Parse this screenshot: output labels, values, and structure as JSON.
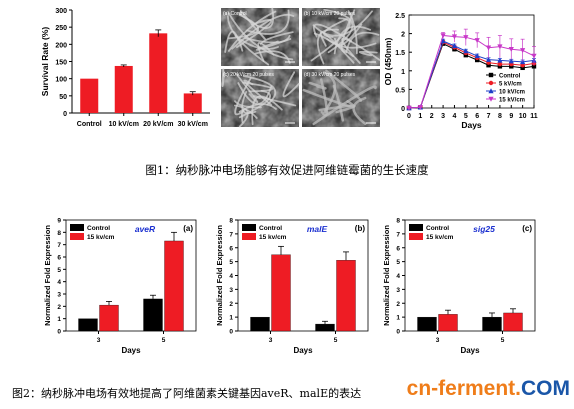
{
  "figure1_caption": "图1：纳秒脉冲电场能够有效促进阿维链霉菌的生长速度",
  "figure2_caption": "图2：纳秒脉冲电场有效地提高了阿维菌素关键基因aveR、malE的表达",
  "watermark": "cn-ferment.COM",
  "sem_labels": [
    "(a) Control",
    "(b) 10 kV/cm 20 pulses",
    "(c) 20 kV/cm 20 pulses",
    "(d) 30 kV/cm 20 pulses"
  ],
  "colors": {
    "red": "#ee1c24",
    "black": "#000000",
    "wm_orange": "#ef7d1a",
    "wm_blue": "#1a56a8"
  },
  "chart_data": [
    {
      "type": "bar",
      "ylabel": "Survival Rate (%)",
      "ylim": [
        0,
        300
      ],
      "yticks": [
        0,
        50,
        100,
        150,
        200,
        250,
        300
      ],
      "categories": [
        "Control",
        "10 kV/cm",
        "20 kV/cm",
        "30 kV/cm"
      ],
      "values": [
        100,
        137,
        232,
        57
      ],
      "errors": [
        0,
        3,
        10,
        5
      ],
      "color": "#ee1c24"
    },
    {
      "type": "line",
      "ylabel": "OD (450nm)",
      "xlabel": "Days",
      "xlim": [
        0,
        11
      ],
      "ylim": [
        0,
        2.5
      ],
      "x": [
        0,
        1,
        2,
        3,
        4,
        5,
        6,
        7,
        8,
        9,
        10,
        11
      ],
      "xticks": [
        0,
        1,
        2,
        3,
        4,
        5,
        6,
        7,
        8,
        9,
        10,
        11
      ],
      "yticks": [
        0,
        0.5,
        1.0,
        1.5,
        2.0,
        2.5
      ],
      "ytick_labels": [
        "0",
        "0.5",
        "1",
        "1.5",
        "2",
        "2.5"
      ],
      "legend": "bottom-right",
      "series": [
        {
          "name": "Control",
          "color": "#000000",
          "marker": "square",
          "values": [
            0,
            0.02,
            null,
            1.73,
            1.58,
            1.42,
            1.29,
            1.15,
            1.12,
            1.12,
            1.08,
            1.12
          ],
          "errors": [
            0,
            0,
            0,
            0.05,
            0.05,
            0.04,
            0.04,
            0.04,
            0.04,
            0.04,
            0.04,
            0.04
          ]
        },
        {
          "name": "5 kV/cm",
          "color": "#ee1c24",
          "marker": "circle",
          "values": [
            0,
            0.02,
            null,
            1.77,
            1.63,
            1.48,
            1.35,
            1.22,
            1.18,
            1.18,
            1.15,
            1.2
          ],
          "errors": [
            0,
            0,
            0,
            0.05,
            0.05,
            0.05,
            0.05,
            0.05,
            0.05,
            0.05,
            0.05,
            0.05
          ]
        },
        {
          "name": "10 kV/cm",
          "color": "#1e3ec8",
          "marker": "triangle",
          "values": [
            0,
            0.02,
            null,
            1.8,
            1.67,
            1.53,
            1.4,
            1.3,
            1.28,
            1.26,
            1.24,
            1.28
          ],
          "errors": [
            0,
            0,
            0,
            0.05,
            0.05,
            0.05,
            0.05,
            0.05,
            0.05,
            0.05,
            0.05,
            0.05
          ]
        },
        {
          "name": "15 kV/cm",
          "color": "#c838c8",
          "marker": "triangle-down",
          "values": [
            0,
            0.02,
            null,
            1.95,
            1.92,
            1.9,
            1.82,
            1.62,
            1.65,
            1.58,
            1.55,
            1.4
          ],
          "errors": [
            0,
            0,
            0,
            0.08,
            0.15,
            0.22,
            0.2,
            0.28,
            0.3,
            0.28,
            0.3,
            0.25
          ]
        }
      ]
    },
    {
      "type": "bar",
      "panel": "(a)",
      "gene": "aveR",
      "ylabel": "Normalized Fold Expression",
      "xlabel": "Days",
      "ylim": [
        0,
        9
      ],
      "yticks": [
        0,
        1,
        2,
        3,
        4,
        5,
        6,
        7,
        8,
        9
      ],
      "categories": [
        "3",
        "5"
      ],
      "legend": "top-left",
      "series": [
        {
          "name": "Control",
          "color": "#000000",
          "values": [
            1.0,
            2.6
          ],
          "errors": [
            0,
            0.3
          ]
        },
        {
          "name": "15 kv/cm",
          "color": "#ee1c24",
          "values": [
            2.1,
            7.3
          ],
          "errors": [
            0.3,
            0.7
          ]
        }
      ]
    },
    {
      "type": "bar",
      "panel": "(b)",
      "gene": "malE",
      "ylabel": "Normalized Fold Expression",
      "xlabel": "Days",
      "ylim": [
        0,
        8
      ],
      "yticks": [
        0,
        1,
        2,
        3,
        4,
        5,
        6,
        7,
        8
      ],
      "categories": [
        "3",
        "5"
      ],
      "legend": "top-left",
      "series": [
        {
          "name": "Control",
          "color": "#000000",
          "values": [
            1.0,
            0.5
          ],
          "errors": [
            0,
            0.2
          ]
        },
        {
          "name": "15 kv/cm",
          "color": "#ee1c24",
          "values": [
            5.5,
            5.1
          ],
          "errors": [
            0.6,
            0.6
          ]
        }
      ]
    },
    {
      "type": "bar",
      "panel": "(c)",
      "gene": "sig25",
      "ylabel": "Normalized Fold Expression",
      "xlabel": "Days",
      "ylim": [
        0,
        8
      ],
      "yticks": [
        0,
        1,
        2,
        3,
        4,
        5,
        6,
        7,
        8
      ],
      "categories": [
        "3",
        "5"
      ],
      "legend": "top-left",
      "series": [
        {
          "name": "Control",
          "color": "#000000",
          "values": [
            1.0,
            1.0
          ],
          "errors": [
            0,
            0.3
          ]
        },
        {
          "name": "15 kv/cm",
          "color": "#ee1c24",
          "values": [
            1.2,
            1.3
          ],
          "errors": [
            0.3,
            0.3
          ]
        }
      ]
    }
  ]
}
